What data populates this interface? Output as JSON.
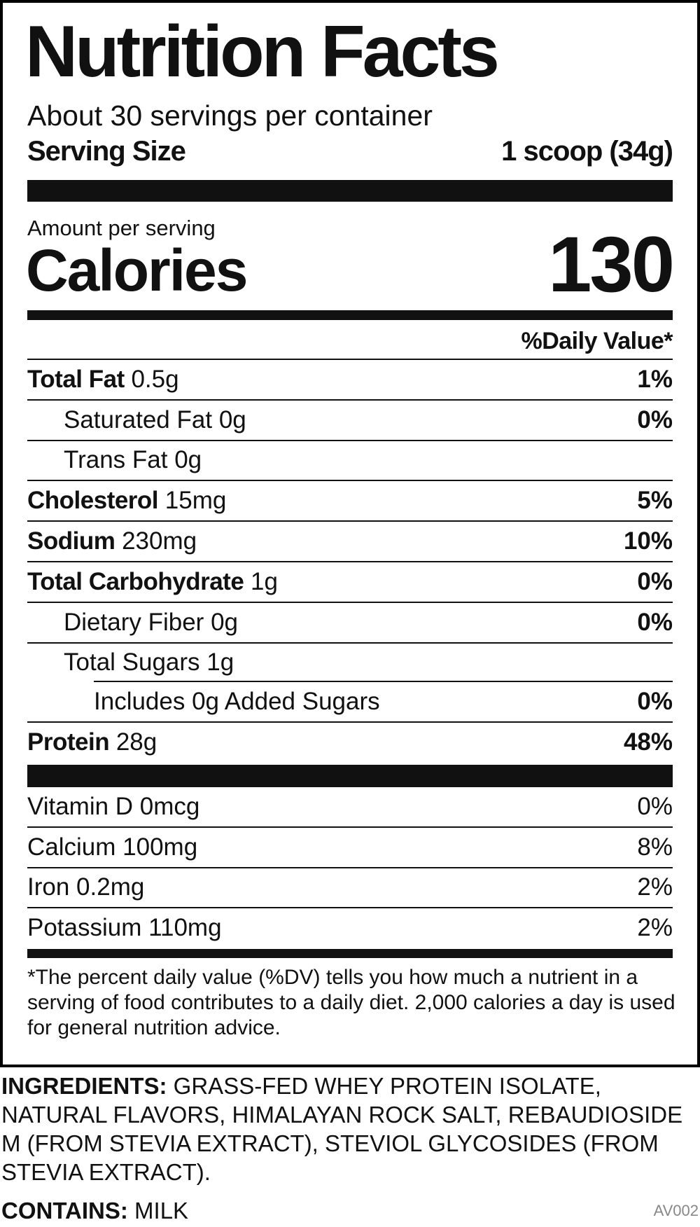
{
  "label": {
    "title": "Nutrition Facts",
    "servings_per_container": "About 30 servings per container",
    "serving_size_label": "Serving Size",
    "serving_size_value": "1 scoop (34g)",
    "amount_per_serving": "Amount per serving",
    "calories_label": "Calories",
    "calories_value": "130",
    "daily_value_header": "%Daily Value*",
    "nutrients": [
      {
        "name": "Total Fat",
        "amount": "0.5g",
        "dv": "1%"
      },
      {
        "name": "Saturated Fat",
        "amount": "0g",
        "dv": "0%"
      },
      {
        "name": "Trans Fat",
        "amount": "0g",
        "dv": ""
      },
      {
        "name": "Cholesterol",
        "amount": "15mg",
        "dv": "5%"
      },
      {
        "name": "Sodium",
        "amount": "230mg",
        "dv": "10%"
      },
      {
        "name": "Total Carbohydrate",
        "amount": "1g",
        "dv": "0%"
      },
      {
        "name": "Dietary Fiber",
        "amount": "0g",
        "dv": "0%"
      },
      {
        "name": "Total Sugars",
        "amount": "1g",
        "dv": ""
      },
      {
        "name": "Includes 0g Added Sugars",
        "amount": "",
        "dv": "0%"
      },
      {
        "name": "Protein",
        "amount": "28g",
        "dv": "48%"
      }
    ],
    "vitamins": [
      {
        "name": "Vitamin D 0mcg",
        "dv": "0%"
      },
      {
        "name": "Calcium 100mg",
        "dv": "8%"
      },
      {
        "name": "Iron 0.2mg",
        "dv": "2%"
      },
      {
        "name": "Potassium 110mg",
        "dv": "2%"
      }
    ],
    "footnote": "*The percent daily value (%DV) tells you how much a nutrient in a serving of food contributes to a daily diet. 2,000 calories a day is used for general nutrition advice."
  },
  "ingredients": {
    "label": "INGREDIENTS:",
    "text": " GRASS-FED WHEY PROTEIN ISOLATE, NATURAL FLAVORS, HIMALAYAN ROCK SALT, REBAUDIOSIDE M (FROM STEVIA EXTRACT), STEVIOL GLYCOSIDES (FROM STEVIA EXTRACT)."
  },
  "contains": {
    "label": "CONTAINS:",
    "text": " MILK"
  },
  "product_code": "AV002"
}
